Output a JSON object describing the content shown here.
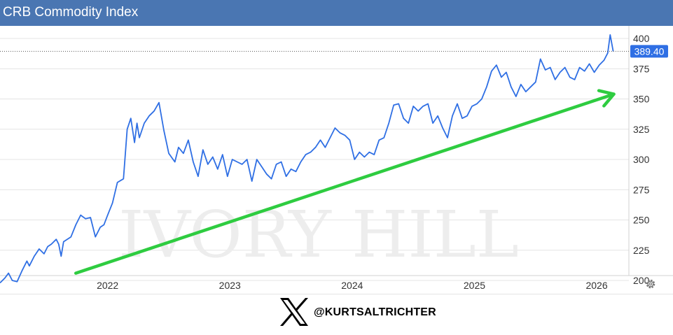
{
  "header": {
    "title": "CRB Commodity Index"
  },
  "watermark": {
    "text": "IVORY HILL"
  },
  "footer": {
    "handle": "@KURTSALTRICHTER"
  },
  "icons": {
    "settings": "gear-icon",
    "brand": "x-logo-icon",
    "arrow": "trend-arrow"
  },
  "colors": {
    "header": "#4a76b2",
    "line": "#2f6fe4",
    "arrow": "#2ecc40",
    "badge": "#2f6fe4"
  },
  "chart_data": {
    "type": "line",
    "title": "CRB Commodity Index",
    "xlabel": "",
    "ylabel": "",
    "x_ticks": [
      {
        "label": "2022",
        "year": 2022.0
      },
      {
        "label": "2023",
        "year": 2023.0
      },
      {
        "label": "2024",
        "year": 2024.0
      },
      {
        "label": "2025",
        "year": 2025.0
      },
      {
        "label": "2026",
        "year": 2026.0
      }
    ],
    "y_ticks": [
      200,
      225,
      250,
      275,
      300,
      325,
      350,
      375,
      400
    ],
    "ylim": [
      182,
      406
    ],
    "xlim": [
      2021.12,
      2026.16
    ],
    "last_value": 389.4,
    "last_label": "389.40",
    "grid": true,
    "series": [
      {
        "points": [
          [
            2021.12,
            198
          ],
          [
            2021.16,
            202
          ],
          [
            2021.19,
            206
          ],
          [
            2021.22,
            200
          ],
          [
            2021.26,
            199
          ],
          [
            2021.3,
            208
          ],
          [
            2021.34,
            216
          ],
          [
            2021.36,
            212
          ],
          [
            2021.4,
            220
          ],
          [
            2021.44,
            226
          ],
          [
            2021.48,
            222
          ],
          [
            2021.51,
            228
          ],
          [
            2021.54,
            230
          ],
          [
            2021.58,
            234
          ],
          [
            2021.6,
            230
          ],
          [
            2021.62,
            220
          ],
          [
            2021.64,
            232
          ],
          [
            2021.7,
            236
          ],
          [
            2021.74,
            246
          ],
          [
            2021.78,
            254
          ],
          [
            2021.82,
            251
          ],
          [
            2021.86,
            252
          ],
          [
            2021.9,
            236
          ],
          [
            2021.94,
            244
          ],
          [
            2021.97,
            246
          ],
          [
            2022.0,
            254
          ],
          [
            2022.04,
            264
          ],
          [
            2022.08,
            281
          ],
          [
            2022.13,
            284
          ],
          [
            2022.16,
            325
          ],
          [
            2022.19,
            334
          ],
          [
            2022.22,
            314
          ],
          [
            2022.24,
            330
          ],
          [
            2022.26,
            318
          ],
          [
            2022.3,
            330
          ],
          [
            2022.34,
            336
          ],
          [
            2022.38,
            340
          ],
          [
            2022.42,
            347
          ],
          [
            2022.46,
            324
          ],
          [
            2022.5,
            305
          ],
          [
            2022.55,
            298
          ],
          [
            2022.58,
            310
          ],
          [
            2022.62,
            305
          ],
          [
            2022.66,
            316
          ],
          [
            2022.7,
            298
          ],
          [
            2022.74,
            286
          ],
          [
            2022.78,
            308
          ],
          [
            2022.82,
            296
          ],
          [
            2022.86,
            302
          ],
          [
            2022.9,
            292
          ],
          [
            2022.94,
            304
          ],
          [
            2022.98,
            286
          ],
          [
            2023.02,
            300
          ],
          [
            2023.06,
            298
          ],
          [
            2023.1,
            296
          ],
          [
            2023.14,
            300
          ],
          [
            2023.18,
            282
          ],
          [
            2023.22,
            300
          ],
          [
            2023.26,
            294
          ],
          [
            2023.3,
            288
          ],
          [
            2023.34,
            284
          ],
          [
            2023.38,
            296
          ],
          [
            2023.42,
            298
          ],
          [
            2023.46,
            286
          ],
          [
            2023.5,
            292
          ],
          [
            2023.54,
            290
          ],
          [
            2023.58,
            298
          ],
          [
            2023.62,
            304
          ],
          [
            2023.66,
            306
          ],
          [
            2023.7,
            310
          ],
          [
            2023.74,
            316
          ],
          [
            2023.78,
            310
          ],
          [
            2023.82,
            318
          ],
          [
            2023.86,
            326
          ],
          [
            2023.9,
            322
          ],
          [
            2023.94,
            320
          ],
          [
            2023.98,
            316
          ],
          [
            2024.02,
            300
          ],
          [
            2024.06,
            306
          ],
          [
            2024.1,
            302
          ],
          [
            2024.14,
            306
          ],
          [
            2024.18,
            304
          ],
          [
            2024.22,
            316
          ],
          [
            2024.26,
            318
          ],
          [
            2024.3,
            330
          ],
          [
            2024.34,
            345
          ],
          [
            2024.38,
            346
          ],
          [
            2024.42,
            334
          ],
          [
            2024.46,
            330
          ],
          [
            2024.5,
            344
          ],
          [
            2024.54,
            340
          ],
          [
            2024.58,
            344
          ],
          [
            2024.62,
            346
          ],
          [
            2024.66,
            330
          ],
          [
            2024.7,
            336
          ],
          [
            2024.74,
            326
          ],
          [
            2024.78,
            318
          ],
          [
            2024.82,
            336
          ],
          [
            2024.86,
            346
          ],
          [
            2024.9,
            334
          ],
          [
            2024.94,
            336
          ],
          [
            2024.98,
            344
          ],
          [
            2025.02,
            346
          ],
          [
            2025.06,
            350
          ],
          [
            2025.1,
            360
          ],
          [
            2025.14,
            373
          ],
          [
            2025.18,
            378
          ],
          [
            2025.22,
            368
          ],
          [
            2025.26,
            372
          ],
          [
            2025.3,
            360
          ],
          [
            2025.34,
            352
          ],
          [
            2025.38,
            362
          ],
          [
            2025.42,
            356
          ],
          [
            2025.46,
            360
          ],
          [
            2025.5,
            364
          ],
          [
            2025.54,
            383
          ],
          [
            2025.58,
            374
          ],
          [
            2025.62,
            376
          ],
          [
            2025.66,
            366
          ],
          [
            2025.7,
            372
          ],
          [
            2025.74,
            376
          ],
          [
            2025.78,
            368
          ],
          [
            2025.82,
            366
          ],
          [
            2025.86,
            376
          ],
          [
            2025.9,
            373
          ],
          [
            2025.94,
            379
          ],
          [
            2025.98,
            372
          ],
          [
            2026.02,
            378
          ],
          [
            2026.06,
            382
          ],
          [
            2026.09,
            388
          ],
          [
            2026.11,
            403
          ],
          [
            2026.135,
            389.4
          ]
        ]
      }
    ],
    "annotations": [
      {
        "type": "arrow",
        "from": [
          2021.74,
          206
        ],
        "to": [
          2026.14,
          354
        ]
      }
    ]
  }
}
